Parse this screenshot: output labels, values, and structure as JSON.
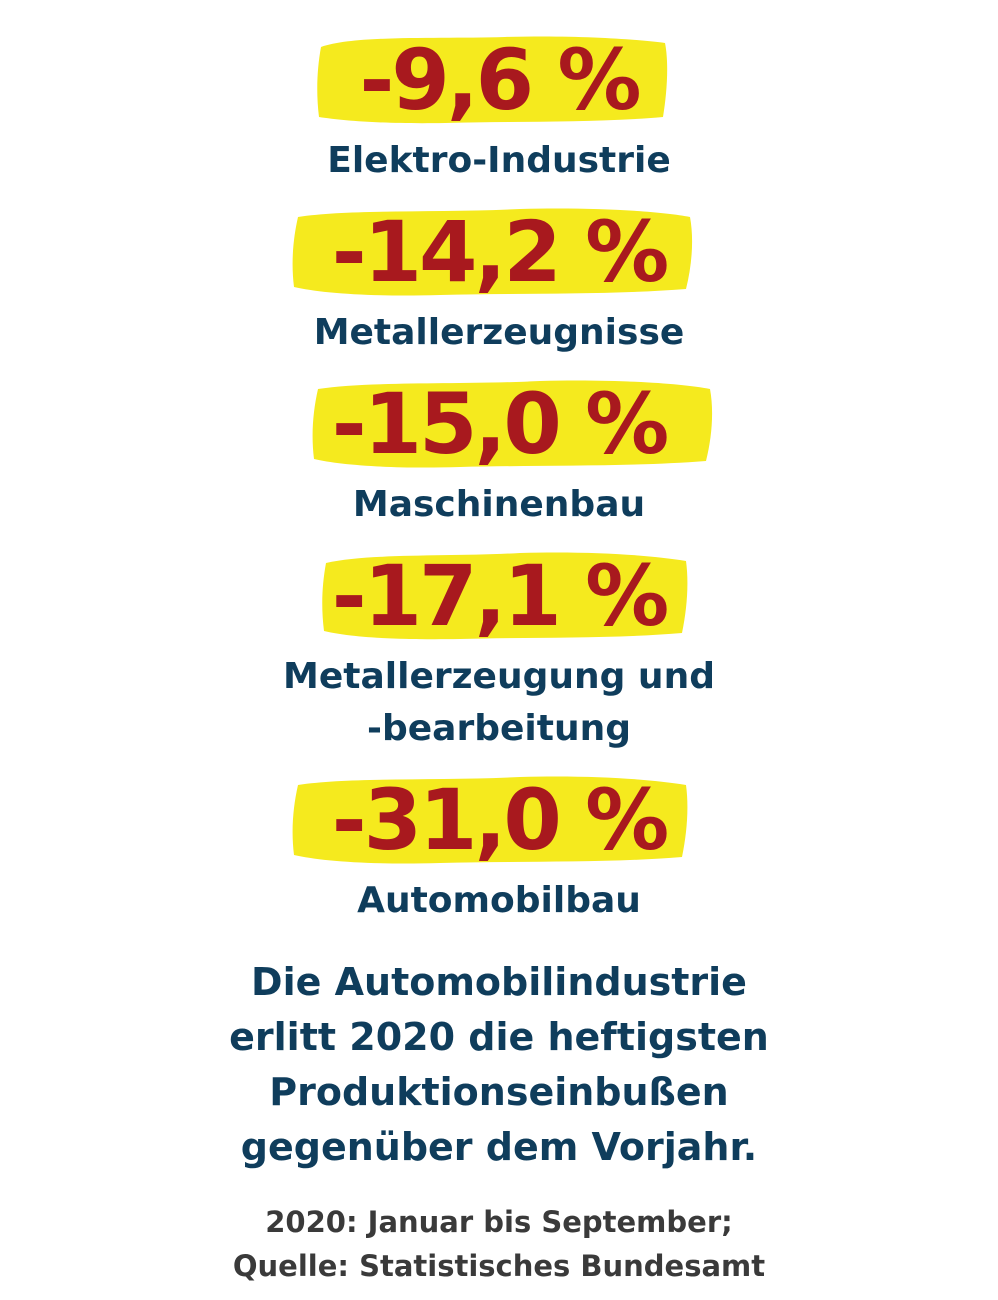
{
  "chart_data": {
    "type": "table",
    "categories": [
      "Elektro-Industrie",
      "Metallerzeugnisse",
      "Maschinenbau",
      [
        "Metallerzeugung und",
        "-bearbeitung"
      ],
      "Automobilbau"
    ],
    "values": [
      -9.6,
      -14.2,
      -15.0,
      -17.1,
      -31.0
    ],
    "value_labels": [
      "-9,6 %",
      "-14,2 %",
      "-15,0 %",
      "-17,1 %",
      "-31,0 %"
    ],
    "unit": "%",
    "summary": [
      "Die Automobilindustrie",
      "erlitt 2020 die heftigsten",
      "Produktionseinbußen",
      "gegenüber dem Vorjahr."
    ],
    "footnote": [
      "2020: Januar bis September;",
      "Quelle: Statistisches Bundesamt"
    ]
  },
  "colors": {
    "value": "#a8191e",
    "label": "#0f3d5c",
    "highlight": "#f5ea1e",
    "footnote": "#3a3a3a"
  }
}
